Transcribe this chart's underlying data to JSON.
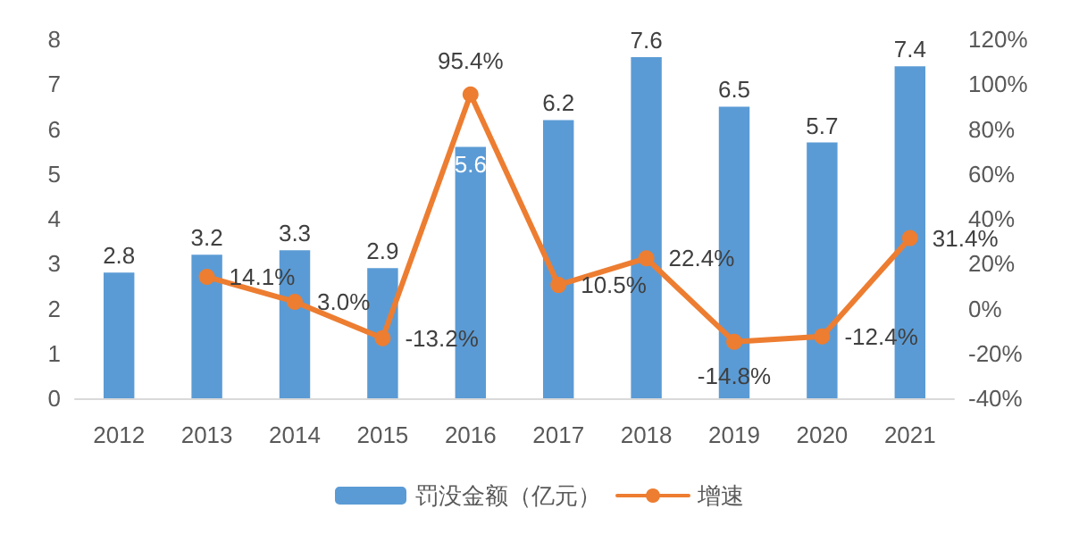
{
  "chart_data": {
    "type": "bar",
    "categories": [
      "2012",
      "2013",
      "2014",
      "2015",
      "2016",
      "2017",
      "2018",
      "2019",
      "2020",
      "2021"
    ],
    "series": [
      {
        "name": "罚没金额（亿元）",
        "color": "#5b9bd5",
        "values": [
          2.8,
          3.2,
          3.3,
          2.9,
          5.6,
          6.2,
          7.6,
          6.5,
          5.7,
          7.4
        ],
        "value_labels": [
          "2.8",
          "3.2",
          "3.3",
          "2.9",
          "5.6",
          "6.2",
          "7.6",
          "6.5",
          "5.7",
          "7.4"
        ]
      },
      {
        "name": "增速",
        "type": "line",
        "axis": "y2",
        "color": "#ed7d31",
        "values": [
          null,
          14.1,
          3.0,
          -13.2,
          95.4,
          10.5,
          22.4,
          -14.8,
          -12.4,
          31.4
        ],
        "value_labels": [
          null,
          "14.1%",
          "3.0%",
          "-13.2%",
          "95.4%",
          "10.5%",
          "22.4%",
          "-14.8%",
          "-12.4%",
          "31.4%"
        ]
      }
    ],
    "ylim": [
      0,
      8
    ],
    "yticks": [
      0,
      1,
      2,
      3,
      4,
      5,
      6,
      7,
      8
    ],
    "y2lim": [
      -40,
      120
    ],
    "y2ticks": [
      {
        "value": -40,
        "label": "-40%"
      },
      {
        "value": -20,
        "label": "-20%"
      },
      {
        "value": 0,
        "label": "0%"
      },
      {
        "value": 20,
        "label": "20%"
      },
      {
        "value": 40,
        "label": "40%"
      },
      {
        "value": 60,
        "label": "60%"
      },
      {
        "value": 80,
        "label": "80%"
      },
      {
        "value": 100,
        "label": "100%"
      },
      {
        "value": 120,
        "label": "120%"
      }
    ],
    "grid": false,
    "legend": "bottom",
    "marker": "circle",
    "line_style": "solid"
  }
}
